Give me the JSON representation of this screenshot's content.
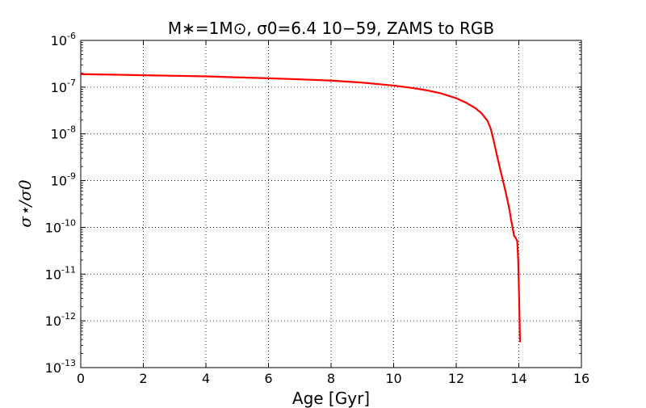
{
  "chart_data": {
    "type": "line",
    "title": "M∗=1M⊙, σ0=6.4 10−59, ZAMS to RGB",
    "xlabel": "Age [Gyr]",
    "ylabel": "σ⋆/σ0",
    "xlim": [
      0,
      16
    ],
    "ylim": [
      1e-13,
      1e-06
    ],
    "yscale": "log",
    "grid": true,
    "x_ticks": [
      "0",
      "2",
      "4",
      "6",
      "8",
      "10",
      "12",
      "14",
      "16"
    ],
    "y_ticks": [
      {
        "base": "10",
        "exp": "-13",
        "value": 1e-13
      },
      {
        "base": "10",
        "exp": "-12",
        "value": 1e-12
      },
      {
        "base": "10",
        "exp": "-11",
        "value": 1e-11
      },
      {
        "base": "10",
        "exp": "-10",
        "value": 1e-10
      },
      {
        "base": "10",
        "exp": "-9",
        "value": 1e-09
      },
      {
        "base": "10",
        "exp": "-8",
        "value": 1e-08
      },
      {
        "base": "10",
        "exp": "-7",
        "value": 1e-07
      },
      {
        "base": "10",
        "exp": "-6",
        "value": 1e-06
      }
    ],
    "series": [
      {
        "color": "#ff0000",
        "x": [
          0,
          1,
          2,
          3,
          4,
          5,
          6,
          7,
          8,
          9,
          10,
          10.5,
          11,
          11.5,
          12,
          12.3,
          12.6,
          12.8,
          13.0,
          13.1,
          13.2,
          13.3,
          13.4,
          13.5,
          13.6,
          13.7,
          13.75,
          13.8,
          13.85,
          13.9,
          13.95,
          13.98,
          14.0,
          14.02,
          14.03,
          14.04
        ],
        "y": [
          1.9e-07,
          1.85e-07,
          1.8e-07,
          1.75e-07,
          1.7e-07,
          1.62e-07,
          1.55e-07,
          1.47e-07,
          1.38e-07,
          1.25e-07,
          1.08e-07,
          9.8e-08,
          8.7e-08,
          7.4e-08,
          5.8e-08,
          4.7e-08,
          3.6e-08,
          2.8e-08,
          1.9e-08,
          1.3e-08,
          7e-09,
          3.5e-09,
          1.8e-09,
          9.5e-10,
          5e-10,
          2.4e-10,
          1.5e-10,
          1e-10,
          6.5e-11,
          6e-11,
          5e-11,
          2e-11,
          6e-12,
          1.5e-12,
          6e-13,
          3.5e-13
        ]
      }
    ]
  }
}
